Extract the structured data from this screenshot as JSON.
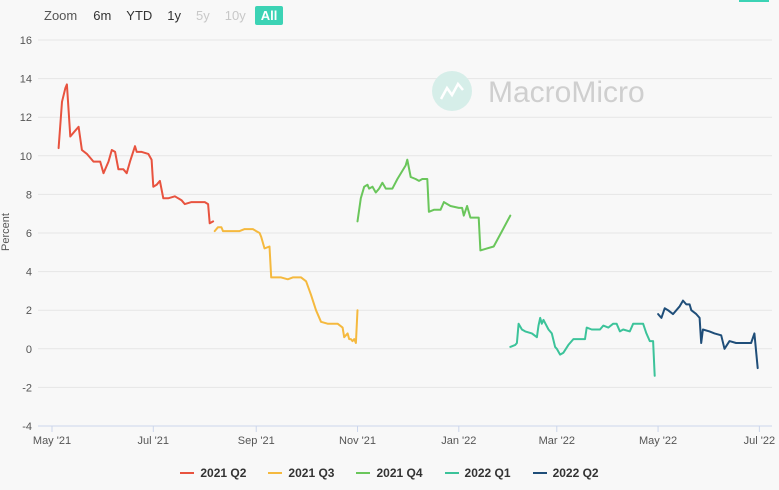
{
  "zoom": {
    "label": "Zoom",
    "buttons": [
      {
        "label": "6m",
        "state": "enabled"
      },
      {
        "label": "YTD",
        "state": "enabled"
      },
      {
        "label": "1y",
        "state": "enabled"
      },
      {
        "label": "5y",
        "state": "disabled"
      },
      {
        "label": "10y",
        "state": "disabled"
      },
      {
        "label": "All",
        "state": "active"
      }
    ]
  },
  "watermark": "MacroMicro",
  "colors": {
    "accent": "#3cd3b5",
    "grid": "#e6e6e6"
  },
  "chart_data": {
    "type": "line",
    "ylabel": "Percent",
    "ylim": [
      -4,
      16
    ],
    "yticks": [
      -4,
      -2,
      0,
      2,
      4,
      6,
      8,
      10,
      12,
      14,
      16
    ],
    "xlim": [
      "2021-05-01",
      "2022-07-05"
    ],
    "xticks": [
      {
        "label": "May '21",
        "date": "2021-05-01"
      },
      {
        "label": "Jul '21",
        "date": "2021-07-01"
      },
      {
        "label": "Sep '21",
        "date": "2021-09-01"
      },
      {
        "label": "Nov '21",
        "date": "2021-11-01"
      },
      {
        "label": "Jan '22",
        "date": "2022-01-01"
      },
      {
        "label": "Mar '22",
        "date": "2022-03-01"
      },
      {
        "label": "May '22",
        "date": "2022-05-01"
      },
      {
        "label": "Jul '22",
        "date": "2022-07-01"
      }
    ],
    "grid": "horizontal",
    "legend_position": "bottom",
    "series": [
      {
        "name": "2021 Q2",
        "color": "#e8533f",
        "points": [
          [
            "2021-05-05",
            10.4
          ],
          [
            "2021-05-07",
            12.8
          ],
          [
            "2021-05-09",
            13.5
          ],
          [
            "2021-05-10",
            13.7
          ],
          [
            "2021-05-12",
            11.0
          ],
          [
            "2021-05-15",
            11.3
          ],
          [
            "2021-05-17",
            11.5
          ],
          [
            "2021-05-19",
            10.3
          ],
          [
            "2021-05-22",
            10.1
          ],
          [
            "2021-05-26",
            9.7
          ],
          [
            "2021-05-30",
            9.7
          ],
          [
            "2021-06-01",
            9.1
          ],
          [
            "2021-06-04",
            9.7
          ],
          [
            "2021-06-06",
            10.3
          ],
          [
            "2021-06-08",
            10.2
          ],
          [
            "2021-06-10",
            9.3
          ],
          [
            "2021-06-13",
            9.3
          ],
          [
            "2021-06-15",
            9.1
          ],
          [
            "2021-06-17",
            9.7
          ],
          [
            "2021-06-20",
            10.5
          ],
          [
            "2021-06-21",
            10.2
          ],
          [
            "2021-06-24",
            10.2
          ],
          [
            "2021-06-28",
            10.1
          ],
          [
            "2021-06-30",
            9.8
          ],
          [
            "2021-07-01",
            8.4
          ],
          [
            "2021-07-03",
            8.5
          ],
          [
            "2021-07-05",
            8.7
          ],
          [
            "2021-07-07",
            7.8
          ],
          [
            "2021-07-10",
            7.8
          ],
          [
            "2021-07-14",
            7.9
          ],
          [
            "2021-07-16",
            7.8
          ],
          [
            "2021-07-18",
            7.7
          ],
          [
            "2021-07-20",
            7.5
          ],
          [
            "2021-07-24",
            7.6
          ],
          [
            "2021-07-28",
            7.6
          ],
          [
            "2021-08-01",
            7.6
          ],
          [
            "2021-08-03",
            7.5
          ],
          [
            "2021-08-04",
            6.5
          ],
          [
            "2021-08-06",
            6.6
          ]
        ]
      },
      {
        "name": "2021 Q3",
        "color": "#f5b93e",
        "points": [
          [
            "2021-08-07",
            6.1
          ],
          [
            "2021-08-09",
            6.3
          ],
          [
            "2021-08-11",
            6.3
          ],
          [
            "2021-08-12",
            6.1
          ],
          [
            "2021-08-18",
            6.1
          ],
          [
            "2021-08-22",
            6.1
          ],
          [
            "2021-08-25",
            6.2
          ],
          [
            "2021-08-30",
            6.2
          ],
          [
            "2021-09-01",
            6.1
          ],
          [
            "2021-09-03",
            6.0
          ],
          [
            "2021-09-04",
            5.8
          ],
          [
            "2021-09-06",
            5.2
          ],
          [
            "2021-09-09",
            5.3
          ],
          [
            "2021-09-10",
            3.7
          ],
          [
            "2021-09-16",
            3.7
          ],
          [
            "2021-09-20",
            3.6
          ],
          [
            "2021-09-23",
            3.7
          ],
          [
            "2021-09-28",
            3.7
          ],
          [
            "2021-10-01",
            3.5
          ],
          [
            "2021-10-04",
            2.8
          ],
          [
            "2021-10-07",
            2.0
          ],
          [
            "2021-10-10",
            1.4
          ],
          [
            "2021-10-14",
            1.3
          ],
          [
            "2021-10-20",
            1.3
          ],
          [
            "2021-10-23",
            1.1
          ],
          [
            "2021-10-24",
            0.6
          ],
          [
            "2021-10-26",
            0.8
          ],
          [
            "2021-10-27",
            0.5
          ],
          [
            "2021-10-28",
            0.5
          ],
          [
            "2021-10-29",
            0.4
          ],
          [
            "2021-10-30",
            0.5
          ],
          [
            "2021-10-31",
            0.3
          ],
          [
            "2021-11-01",
            2.0
          ]
        ]
      },
      {
        "name": "2021 Q4",
        "color": "#6ac65b",
        "points": [
          [
            "2021-11-01",
            6.6
          ],
          [
            "2021-11-03",
            7.8
          ],
          [
            "2021-11-05",
            8.4
          ],
          [
            "2021-11-07",
            8.5
          ],
          [
            "2021-11-08",
            8.3
          ],
          [
            "2021-11-10",
            8.4
          ],
          [
            "2021-11-12",
            8.1
          ],
          [
            "2021-11-14",
            8.3
          ],
          [
            "2021-11-16",
            8.6
          ],
          [
            "2021-11-18",
            8.3
          ],
          [
            "2021-11-22",
            8.3
          ],
          [
            "2021-11-25",
            8.8
          ],
          [
            "2021-11-30",
            9.5
          ],
          [
            "2021-12-01",
            9.8
          ],
          [
            "2021-12-03",
            8.9
          ],
          [
            "2021-12-06",
            8.8
          ],
          [
            "2021-12-08",
            8.7
          ],
          [
            "2021-12-10",
            8.8
          ],
          [
            "2021-12-13",
            8.8
          ],
          [
            "2021-12-14",
            7.1
          ],
          [
            "2021-12-17",
            7.2
          ],
          [
            "2021-12-21",
            7.2
          ],
          [
            "2021-12-23",
            7.6
          ],
          [
            "2021-12-27",
            7.4
          ],
          [
            "2022-01-01",
            7.3
          ],
          [
            "2022-01-03",
            7.3
          ],
          [
            "2022-01-04",
            6.9
          ],
          [
            "2022-01-06",
            7.4
          ],
          [
            "2022-01-08",
            6.8
          ],
          [
            "2022-01-13",
            6.8
          ],
          [
            "2022-01-14",
            5.1
          ],
          [
            "2022-01-18",
            5.2
          ],
          [
            "2022-01-22",
            5.3
          ],
          [
            "2022-01-27",
            6.1
          ],
          [
            "2022-02-01",
            6.9
          ]
        ]
      },
      {
        "name": "2022 Q1",
        "color": "#3cc39a",
        "points": [
          [
            "2022-02-01",
            0.1
          ],
          [
            "2022-02-04",
            0.2
          ],
          [
            "2022-02-05",
            0.3
          ],
          [
            "2022-02-06",
            1.3
          ],
          [
            "2022-02-08",
            1.0
          ],
          [
            "2022-02-10",
            0.9
          ],
          [
            "2022-02-14",
            0.8
          ],
          [
            "2022-02-17",
            0.6
          ],
          [
            "2022-02-18",
            1.2
          ],
          [
            "2022-02-19",
            1.6
          ],
          [
            "2022-02-20",
            1.3
          ],
          [
            "2022-02-21",
            1.5
          ],
          [
            "2022-02-24",
            1.0
          ],
          [
            "2022-02-26",
            0.8
          ],
          [
            "2022-02-28",
            0.1
          ],
          [
            "2022-03-01",
            0.0
          ],
          [
            "2022-03-03",
            -0.3
          ],
          [
            "2022-03-05",
            -0.2
          ],
          [
            "2022-03-08",
            0.2
          ],
          [
            "2022-03-11",
            0.5
          ],
          [
            "2022-03-15",
            0.5
          ],
          [
            "2022-03-18",
            0.5
          ],
          [
            "2022-03-19",
            1.1
          ],
          [
            "2022-03-22",
            1.0
          ],
          [
            "2022-03-27",
            1.0
          ],
          [
            "2022-03-29",
            1.2
          ],
          [
            "2022-04-01",
            1.1
          ],
          [
            "2022-04-04",
            1.3
          ],
          [
            "2022-04-06",
            1.3
          ],
          [
            "2022-04-08",
            0.9
          ],
          [
            "2022-04-10",
            1.0
          ],
          [
            "2022-04-14",
            0.9
          ],
          [
            "2022-04-16",
            1.3
          ],
          [
            "2022-04-22",
            1.3
          ],
          [
            "2022-04-24",
            0.8
          ],
          [
            "2022-04-26",
            0.4
          ],
          [
            "2022-04-28",
            0.4
          ],
          [
            "2022-04-29",
            -1.4
          ]
        ]
      },
      {
        "name": "2022 Q2",
        "color": "#1f4e79",
        "points": [
          [
            "2022-05-01",
            1.8
          ],
          [
            "2022-05-03",
            1.6
          ],
          [
            "2022-05-05",
            2.1
          ],
          [
            "2022-05-07",
            2.0
          ],
          [
            "2022-05-10",
            1.8
          ],
          [
            "2022-05-14",
            2.2
          ],
          [
            "2022-05-16",
            2.5
          ],
          [
            "2022-05-18",
            2.3
          ],
          [
            "2022-05-20",
            2.3
          ],
          [
            "2022-05-21",
            2.0
          ],
          [
            "2022-05-24",
            1.8
          ],
          [
            "2022-05-26",
            1.6
          ],
          [
            "2022-05-27",
            0.3
          ],
          [
            "2022-05-28",
            1.0
          ],
          [
            "2022-06-01",
            0.9
          ],
          [
            "2022-06-04",
            0.8
          ],
          [
            "2022-06-08",
            0.7
          ],
          [
            "2022-06-10",
            0.0
          ],
          [
            "2022-06-13",
            0.4
          ],
          [
            "2022-06-17",
            0.3
          ],
          [
            "2022-06-22",
            0.3
          ],
          [
            "2022-06-26",
            0.3
          ],
          [
            "2022-06-28",
            0.8
          ],
          [
            "2022-06-30",
            -1.0
          ]
        ]
      }
    ]
  }
}
